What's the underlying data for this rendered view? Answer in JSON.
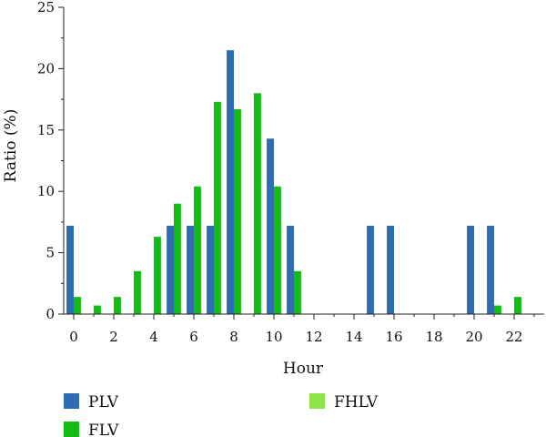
{
  "chart_data": {
    "type": "bar",
    "xlabel": "Hour",
    "ylabel": "Ratio (%)",
    "ylim": [
      0,
      25
    ],
    "xlim": [
      -0.5,
      23.5
    ],
    "x_ticks": [
      0,
      2,
      4,
      6,
      8,
      10,
      12,
      14,
      16,
      18,
      20,
      22
    ],
    "y_ticks": [
      0,
      5,
      10,
      15,
      20,
      25
    ],
    "x": [
      0,
      1,
      2,
      3,
      4,
      5,
      6,
      7,
      8,
      9,
      10,
      11,
      12,
      13,
      14,
      15,
      16,
      17,
      18,
      19,
      20,
      21,
      22,
      23
    ],
    "series": [
      {
        "name": "PLV",
        "color": "#2e6db4",
        "values": [
          7.2,
          0,
          0,
          0,
          0,
          7.2,
          7.2,
          7.2,
          21.5,
          0,
          14.3,
          7.2,
          0,
          0,
          0,
          7.2,
          7.2,
          0,
          0,
          0,
          7.2,
          7.2,
          0,
          0
        ]
      },
      {
        "name": "FLV",
        "color": "#13bd13",
        "values": [
          1.4,
          0.7,
          1.4,
          3.5,
          6.3,
          9.0,
          10.4,
          17.3,
          16.7,
          18.0,
          10.4,
          3.5,
          0,
          0,
          0,
          0,
          0,
          0,
          0,
          0,
          0,
          0.7,
          1.4,
          0
        ]
      },
      {
        "name": "FHLV",
        "color": "#8fe34a",
        "values": [
          0,
          0,
          0,
          0,
          0,
          0,
          0,
          0,
          0,
          0,
          0,
          0,
          0,
          0,
          0,
          0,
          0,
          0,
          0,
          0,
          0,
          0,
          0,
          0
        ]
      }
    ],
    "legend": {
      "placement": "bottom",
      "entries": [
        "PLV",
        "FLV",
        "FHLV"
      ]
    },
    "grid": false
  }
}
